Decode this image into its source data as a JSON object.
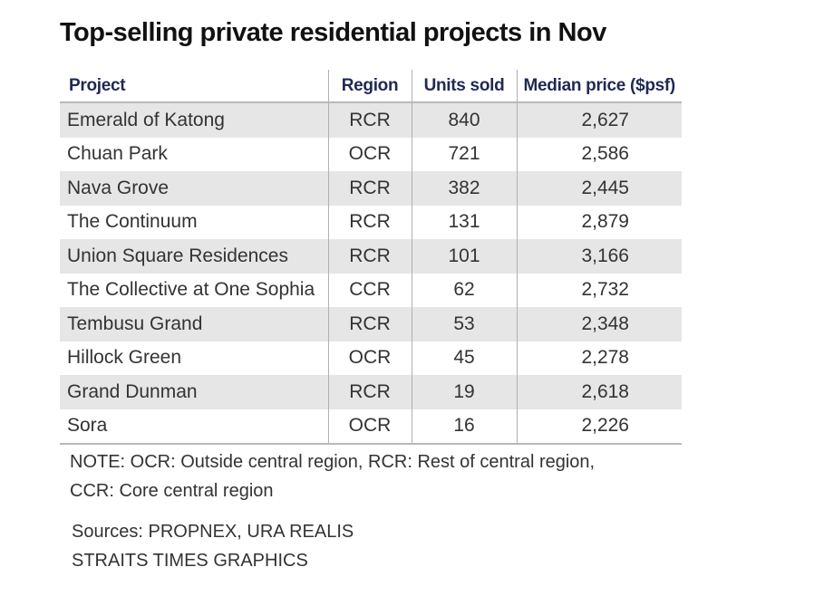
{
  "chart_data": {
    "type": "table",
    "title": "Top-selling private residential projects in Nov",
    "columns": [
      "Project",
      "Region",
      "Units sold",
      "Median price ($psf)"
    ],
    "rows": [
      [
        "Emerald of Katong",
        "RCR",
        "840",
        "2,627"
      ],
      [
        "Chuan Park",
        "OCR",
        "721",
        "2,586"
      ],
      [
        "Nava Grove",
        "RCR",
        "382",
        "2,445"
      ],
      [
        "The Continuum",
        "RCR",
        "131",
        "2,879"
      ],
      [
        "Union Square Residences",
        "RCR",
        "101",
        "3,166"
      ],
      [
        "The Collective at One Sophia",
        "CCR",
        "62",
        "2,732"
      ],
      [
        "Tembusu Grand",
        "RCR",
        "53",
        "2,348"
      ],
      [
        "Hillock Green",
        "OCR",
        "45",
        "2,278"
      ],
      [
        "Grand Dunman",
        "RCR",
        "19",
        "2,618"
      ],
      [
        "Sora",
        "OCR",
        "16",
        "2,226"
      ]
    ],
    "note_lines": [
      "NOTE: OCR: Outside central region, RCR: Rest of central region,",
      "CCR: Core central region"
    ],
    "source_lines": [
      "Sources: PROPNEX, URA REALIS",
      "STRAITS TIMES GRAPHICS"
    ]
  }
}
